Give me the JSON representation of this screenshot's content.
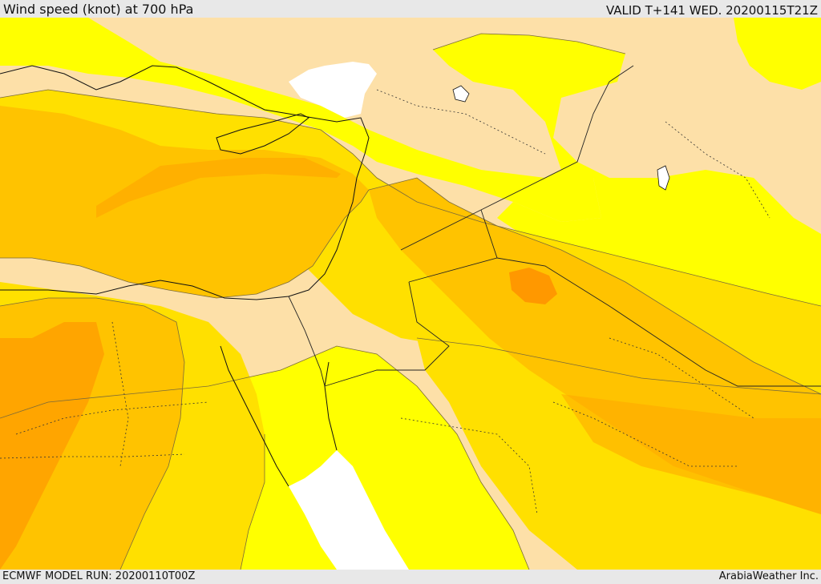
{
  "header": {
    "title": "Wind speed (knot) at 700 hPa",
    "valid": "VALID T+141 WED. 20200115T21Z"
  },
  "footer": {
    "model_run": "ECMWF MODEL RUN: 20200110T00Z",
    "credit": "ArabiaWeather Inc."
  },
  "colors": {
    "land_calm": "#fde0a8",
    "sea": "#ffffff",
    "band_1": "#ffff00",
    "band_2": "#ffe000",
    "band_3": "#ffc300",
    "band_4": "#ffa500",
    "band_5": "#ff9000"
  }
}
